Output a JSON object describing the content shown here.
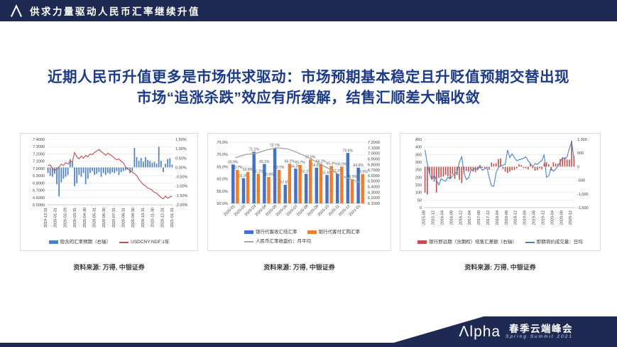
{
  "slide": {
    "header": {
      "title": "供求力量驱动人民币汇率继续升值",
      "logo_icon": "alpha-triangle"
    },
    "heading": {
      "line1": "近期人民币升值更多是市场供求驱动：市场预期基本稳定且升贬值预期交替出现",
      "line2": "市场“追涨杀跌”效应有所缓解，结售汇顺差大幅收敛"
    },
    "sources": [
      "资料来源: 万得, 中银证券",
      "资料来源: 万得, 中银证券",
      "资料来源: 万得, 中银证券"
    ],
    "footer": {
      "logo_text": "Λlpha",
      "event_cn": "春季云端峰会",
      "event_en": "Spring Summit 2021"
    },
    "colors": {
      "navy": "#1f2a52",
      "heading_blue": "#1e3b85",
      "bar_blue": "#4472c4",
      "bar_orange": "#ed7d31",
      "line_gray": "#a6a6a6",
      "ndf_red": "#c0504d",
      "steel_blue": "#4f81bd"
    }
  },
  "chart_data": [
    {
      "type": "bar-line-combo",
      "title": "",
      "x_labels": [
        "2019-12-31",
        "2020-01-31",
        "2020-02-29",
        "2020-03-31",
        "2020-04-30",
        "2020-05-31",
        "2020-06-30",
        "2020-07-31",
        "2020-08-31",
        "2020-09-30",
        "2020-10-31",
        "2020-11-30",
        "2020-12-31",
        "2021-01-31"
      ],
      "left_axis": {
        "range": [
          6.5,
          7.4
        ],
        "ticks": [
          "7.4000",
          "7.3000",
          "7.2000",
          "7.1000",
          "7.0000",
          "6.9000",
          "6.8000",
          "6.7000",
          "6.6000",
          "6.5000"
        ]
      },
      "right_axis": {
        "range": [
          -2.0,
          1.5
        ],
        "ticks": [
          "1.50%",
          "1.00%",
          "0.50%",
          "0.00%",
          "-0.50%",
          "-1.00%",
          "-1.50%",
          "-2.00%"
        ]
      },
      "grid": true,
      "legend_position": "bottom",
      "series": [
        {
          "name": "隐含的汇率预期（右轴）",
          "type": "bar",
          "axis": "right",
          "color": "#4f81bd",
          "values": [
            -0.3,
            -0.45,
            -0.5,
            -0.35,
            -0.9,
            -1.55,
            -0.8,
            -0.6,
            -0.5,
            -0.4,
            0.45,
            0.3,
            -1.0,
            -0.85,
            -0.4,
            -0.5,
            -0.3,
            -0.9,
            -0.6,
            -0.3,
            -0.2,
            -0.4,
            -0.35,
            -0.25,
            -0.5,
            -0.3,
            -0.4,
            -0.3,
            -0.35,
            -0.25,
            -0.3,
            -0.2,
            -0.4,
            -0.25,
            -0.2,
            -0.15,
            -0.1,
            -0.3,
            -0.2,
            1.05,
            0.55,
            0.35,
            0.5,
            0.3,
            0.55,
            0.4,
            0.35,
            0.25,
            0.3,
            0.2,
            1.1,
            0.35,
            -0.25,
            0.2,
            0.45,
            0.5,
            0.15
          ]
        },
        {
          "name": "USDCNY:NDF:1年",
          "type": "line",
          "axis": "left",
          "color": "#c0504d",
          "values": [
            7.04,
            7.05,
            7.0,
            6.97,
            6.99,
            7.02,
            7.06,
            7.04,
            7.08,
            7.06,
            7.1,
            7.09,
            7.22,
            7.16,
            7.13,
            7.17,
            7.14,
            7.18,
            7.16,
            7.2,
            7.19,
            7.22,
            7.24,
            7.26,
            7.23,
            7.21,
            7.18,
            7.21,
            7.19,
            7.17,
            7.14,
            7.12,
            7.13,
            7.1,
            7.08,
            7.02,
            6.99,
            6.97,
            6.95,
            6.93,
            6.9,
            6.85,
            6.81,
            6.78,
            6.76,
            6.73,
            6.72,
            6.7,
            6.67,
            6.66,
            6.63,
            6.6,
            6.58,
            6.62,
            6.59,
            6.61,
            6.62
          ]
        }
      ]
    },
    {
      "type": "grouped-bar-line-combo",
      "title": "",
      "x_labels": [
        "2020-01",
        "2020-02",
        "2020-03",
        "2020-04",
        "2020-05",
        "2020-06",
        "2020-07",
        "2020-08",
        "2020-09",
        "2020-10",
        "2020-11",
        "2020-12",
        "2021-01"
      ],
      "left_axis": {
        "range": [
          50,
          75
        ],
        "ticks": [
          "75.0%",
          "70.0%",
          "65.0%",
          "60.0%",
          "55.0%",
          "50.0%"
        ]
      },
      "right_axis": {
        "range": [
          6.1,
          7.2
        ],
        "ticks": [
          "7.2000",
          "7.1000",
          "7.0000",
          "6.9000",
          "6.8000",
          "6.7000",
          "6.6000",
          "6.5000",
          "6.4000",
          "6.3000",
          "6.2000",
          "6.1000"
        ]
      },
      "grid": true,
      "legend_position": "bottom",
      "series": [
        {
          "name": "银行代客收汇结汇率",
          "type": "bar",
          "axis": "left",
          "color": "#4472c4",
          "values": [
            65.9,
            60.3,
            71.1,
            66.1,
            72.7,
            57.6,
            64.2,
            62.1,
            64.6,
            61.6,
            62.2,
            70.6,
            64.6
          ],
          "labels": [
            "65.9%",
            "60.3%",
            "71.1%",
            "66.1%",
            "72.7%",
            "57.6%",
            "64.2%",
            "62.1%",
            "64.6%",
            "61.6%",
            "62.2%",
            "70.6%",
            "64.6%"
          ]
        },
        {
          "name": "银行代客付汇购汇率",
          "type": "bar",
          "axis": "left",
          "color": "#ed7d31",
          "values": [
            63.7,
            62.8,
            62.1,
            60.8,
            63.7,
            66.2,
            65.7,
            67.9,
            66.2,
            65.3,
            65.0,
            59.9,
            62.0
          ],
          "labels": [
            "63.7%",
            "62.8%",
            "62.1%",
            "60.8%",
            "63.7%",
            "66.2%",
            "65.7%",
            "67.9%",
            "66.2%",
            "65.3%",
            "65.0%",
            "59.9%",
            "62.0%"
          ]
        },
        {
          "name": "人民币汇率收盘价：月平均",
          "type": "line",
          "axis": "right",
          "color": "#a6a6a6",
          "values": [
            6.92,
            6.98,
            7.0,
            7.06,
            7.1,
            7.08,
            7.01,
            6.93,
            6.82,
            6.72,
            6.61,
            6.54,
            6.47
          ]
        }
      ]
    },
    {
      "type": "bar-line-combo",
      "title": "",
      "x_labels": [
        "2015-08",
        "2015-12",
        "2016-04",
        "2016-08",
        "2016-12",
        "2017-04",
        "2017-08",
        "2017-12",
        "2018-04",
        "2018-08",
        "2018-12",
        "2019-04",
        "2019-08",
        "2019-12",
        "2020-04",
        "2020-08",
        "2020-12"
      ],
      "x_points": 66,
      "left_axis": {
        "range": [
          0,
          450
        ],
        "ticks": [
          "450",
          "400",
          "350",
          "300",
          "250",
          "200",
          "150",
          "100",
          "50",
          "0"
        ]
      },
      "right_axis": {
        "range": [
          -1500,
          1000
        ],
        "ticks": [
          "1,000",
          "500",
          "0",
          "-500",
          "-1,000",
          "-1,500"
        ]
      },
      "grid": true,
      "legend_position": "bottom",
      "series": [
        {
          "name": "银行即远期（含期权）结售汇差额（右轴）",
          "type": "bar",
          "axis": "right",
          "color": "#c0504d",
          "values": [
            -950,
            -1020,
            -260,
            -430,
            -550,
            -940,
            -410,
            -380,
            -360,
            -300,
            -350,
            -420,
            -280,
            -450,
            -310,
            -480,
            -600,
            -260,
            -160,
            -180,
            -120,
            -180,
            -200,
            -130,
            -60,
            -40,
            -50,
            -60,
            -110,
            150,
            110,
            130,
            280,
            300,
            -80,
            -180,
            -230,
            -180,
            -130,
            -120,
            -70,
            90,
            60,
            -50,
            -60,
            -100,
            110,
            -60,
            -150,
            -130,
            -60,
            -90,
            130,
            160,
            90,
            -140,
            160,
            120,
            100,
            280,
            330,
            340,
            260,
            260,
            950,
            400
          ]
        },
        {
          "name": "即期询价成交量：日均",
          "type": "line",
          "axis": "left",
          "color": "#4f81bd",
          "values": [
            380,
            290,
            220,
            185,
            215,
            180,
            150,
            190,
            180,
            175,
            200,
            190,
            210,
            225,
            235,
            300,
            335,
            230,
            185,
            195,
            245,
            250,
            260,
            250,
            280,
            245,
            255,
            265,
            200,
            145,
            140,
            230,
            265,
            275,
            280,
            285,
            380,
            330,
            355,
            330,
            310,
            315,
            320,
            325,
            335,
            310,
            290,
            270,
            290,
            285,
            300,
            310,
            350,
            200,
            210,
            260,
            240,
            255,
            275,
            300,
            330,
            320,
            335,
            390,
            435,
            320
          ]
        }
      ]
    }
  ]
}
